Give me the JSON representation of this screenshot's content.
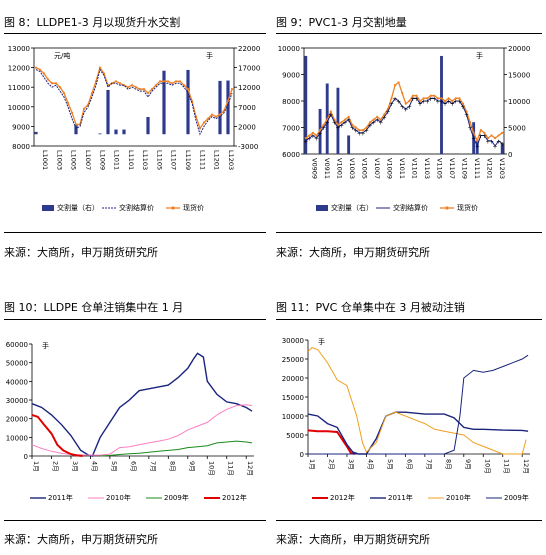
{
  "fig8": {
    "title": "图 8：LLDPE1-3 月以现货升水交割",
    "source": "来源：大商所，申万期货研究所",
    "chart_data": {
      "type": "bar+line",
      "left_unit": "元/吨",
      "right_unit": "手",
      "left_ylim": [
        8000,
        13000
      ],
      "left_ticks": [
        8000,
        9000,
        10000,
        11000,
        12000,
        13000
      ],
      "right_ylim": [
        -3000,
        22000
      ],
      "right_ticks": [
        -3000,
        2000,
        7000,
        12000,
        17000,
        22000
      ],
      "xticks": [
        "L1001",
        "L1003",
        "L1005",
        "L1007",
        "L1009",
        "L1011",
        "L1101",
        "L1103",
        "L1105",
        "L1107",
        "L1109",
        "L1111",
        "L1201",
        "L1203"
      ],
      "legend": [
        "交割量（右）",
        "交割结算价",
        "现货价"
      ],
      "bars": [
        600,
        0,
        0,
        0,
        0,
        0,
        0,
        0,
        0,
        0,
        2500,
        0,
        0,
        0,
        0,
        0,
        200,
        0,
        11300,
        0,
        1200,
        0,
        1200,
        0,
        0,
        0,
        0,
        0,
        4400,
        0,
        0,
        0,
        16200,
        0,
        0,
        0,
        0,
        0,
        16400,
        0,
        0,
        0,
        0,
        0,
        0,
        0,
        13600,
        0,
        13700,
        0
      ],
      "settle": [
        11900,
        11800,
        11500,
        11200,
        11000,
        11100,
        10800,
        10500,
        10000,
        9400,
        8900,
        9000,
        9700,
        10000,
        10500,
        11100,
        11900,
        11600,
        11000,
        11200,
        11200,
        11100,
        11100,
        10900,
        11000,
        10900,
        10800,
        10800,
        10500,
        10800,
        11000,
        11200,
        11200,
        11200,
        11100,
        11200,
        11200,
        11000,
        10700,
        10200,
        9300,
        8600,
        9000,
        9300,
        9500,
        9400,
        9500,
        9700,
        10100,
        10700
      ],
      "spot": [
        12000,
        11900,
        11700,
        11400,
        11200,
        11200,
        11000,
        10700,
        10200,
        9700,
        9100,
        9100,
        9900,
        10100,
        10700,
        11300,
        12000,
        11700,
        11100,
        11200,
        11300,
        11200,
        11100,
        11000,
        11100,
        11000,
        10900,
        10900,
        10700,
        10900,
        11100,
        11300,
        11300,
        11300,
        11200,
        11300,
        11300,
        11100,
        10900,
        10300,
        9500,
        8900,
        9200,
        9400,
        9600,
        9500,
        9600,
        9800,
        10300,
        10900
      ]
    }
  },
  "fig9": {
    "title": "图 9：PVC1-3 月交割地量",
    "source": "来源：大商所，申万期货研究所",
    "chart_data": {
      "type": "bar+line",
      "left_unit": "",
      "right_unit": "手",
      "left_ylim": [
        6000,
        10000
      ],
      "left_ticks": [
        6000,
        7000,
        8000,
        9000,
        10000
      ],
      "right_ylim": [
        0,
        20000
      ],
      "right_ticks": [
        0,
        5000,
        10000,
        15000,
        20000
      ],
      "xticks": [
        "V0909",
        "V0911",
        "V1001",
        "V1003",
        "V1005",
        "V1007",
        "V1009",
        "V1011",
        "V1101",
        "V1103",
        "V1105",
        "V1107",
        "V1109",
        "V1111",
        "V1201",
        "V1203"
      ],
      "legend": [
        "交割量（右）",
        "交割结算价",
        "现货价"
      ],
      "bars": [
        18500,
        0,
        0,
        0,
        8500,
        0,
        13300,
        0,
        0,
        12500,
        0,
        0,
        3500,
        0,
        0,
        0,
        0,
        0,
        0,
        0,
        0,
        0,
        0,
        0,
        0,
        0,
        0,
        0,
        0,
        0,
        0,
        0,
        0,
        0,
        0,
        0,
        0,
        0,
        18500,
        0,
        0,
        0,
        0,
        0,
        0,
        0,
        0,
        6000,
        2500,
        0,
        0,
        0,
        0,
        0,
        0,
        2000
      ],
      "settle": [
        6500,
        6600,
        6700,
        6600,
        6800,
        7000,
        7200,
        7500,
        7200,
        7000,
        7100,
        7200,
        7300,
        7000,
        6900,
        6800,
        6800,
        6900,
        7100,
        7200,
        7300,
        7200,
        7400,
        7600,
        7900,
        8100,
        8000,
        7800,
        7700,
        7800,
        8100,
        8100,
        7900,
        8000,
        8000,
        8100,
        8100,
        8000,
        8000,
        7900,
        8000,
        7900,
        8000,
        8000,
        7800,
        7500,
        7000,
        6600,
        6300,
        6700,
        6700,
        6500,
        6500,
        6300,
        6500,
        6400
      ],
      "spot": [
        6600,
        6700,
        6800,
        6700,
        6900,
        7100,
        7300,
        7600,
        7300,
        7100,
        7200,
        7300,
        7400,
        7100,
        7000,
        6900,
        6900,
        7000,
        7200,
        7300,
        7400,
        7300,
        7500,
        7700,
        8100,
        8600,
        8700,
        8300,
        7900,
        8000,
        8200,
        8200,
        8000,
        8100,
        8100,
        8200,
        8200,
        8100,
        8100,
        8000,
        8100,
        8000,
        8100,
        8100,
        7900,
        7600,
        7200,
        6800,
        6500,
        6900,
        6800,
        6600,
        6700,
        6600,
        6700,
        6800
      ]
    }
  },
  "fig10": {
    "title": "图 10：LLDPE 仓单注销集中在 1 月",
    "source": "来源：大商所，申万期货研究所",
    "chart_data": {
      "type": "line",
      "unit": "手",
      "ylim": [
        0,
        60000
      ],
      "yticks": [
        0,
        10000,
        20000,
        30000,
        40000,
        50000,
        60000
      ],
      "xticks": [
        "1月",
        "2月",
        "3月",
        "4月",
        "5月",
        "6月",
        "7月",
        "8月",
        "9月",
        "10月",
        "11月",
        "12月"
      ],
      "series": [
        {
          "name": "2011年",
          "color": "#1a237e",
          "points": [
            [
              1,
              28000
            ],
            [
              1.5,
              26000
            ],
            [
              2,
              22000
            ],
            [
              2.5,
              17000
            ],
            [
              3,
              11000
            ],
            [
              3.5,
              3000
            ],
            [
              3.9,
              500
            ],
            [
              4.1,
              0
            ],
            [
              4.5,
              10000
            ],
            [
              5,
              18000
            ],
            [
              5.5,
              26000
            ],
            [
              6,
              30000
            ],
            [
              6.5,
              35000
            ],
            [
              7,
              36000
            ],
            [
              7.5,
              37000
            ],
            [
              8,
              38000
            ],
            [
              8.5,
              42000
            ],
            [
              9,
              47000
            ],
            [
              9.3,
              52000
            ],
            [
              9.5,
              55000
            ],
            [
              9.8,
              53000
            ],
            [
              10,
              40000
            ],
            [
              10.5,
              33000
            ],
            [
              11,
              29000
            ],
            [
              11.5,
              28000
            ],
            [
              12,
              26000
            ],
            [
              12.3,
              24000
            ]
          ]
        },
        {
          "name": "2010年",
          "color": "#ff80c0",
          "points": [
            [
              1,
              6000
            ],
            [
              1.5,
              4000
            ],
            [
              2,
              2500
            ],
            [
              2.5,
              1500
            ],
            [
              3,
              800
            ],
            [
              3.5,
              600
            ],
            [
              4,
              500
            ],
            [
              4.5,
              500
            ],
            [
              5,
              1000
            ],
            [
              5.5,
              4500
            ],
            [
              6,
              5000
            ],
            [
              6.5,
              6000
            ],
            [
              7,
              7000
            ],
            [
              7.5,
              8000
            ],
            [
              8,
              9000
            ],
            [
              8.5,
              11000
            ],
            [
              9,
              14000
            ],
            [
              9.5,
              16000
            ],
            [
              10,
              18000
            ],
            [
              10.5,
              22000
            ],
            [
              11,
              25000
            ],
            [
              11.5,
              27000
            ],
            [
              12,
              27500
            ],
            [
              12.3,
              27000
            ]
          ]
        },
        {
          "name": "2009年",
          "color": "#1b8a1b",
          "points": [
            [
              4.5,
              0
            ],
            [
              5,
              300
            ],
            [
              5.5,
              800
            ],
            [
              6,
              1200
            ],
            [
              6.5,
              1500
            ],
            [
              7,
              2000
            ],
            [
              7.5,
              2500
            ],
            [
              8,
              3000
            ],
            [
              8.5,
              3500
            ],
            [
              9,
              4500
            ],
            [
              9.5,
              5000
            ],
            [
              10,
              5500
            ],
            [
              10.5,
              7000
            ],
            [
              11,
              7500
            ],
            [
              11.5,
              8000
            ],
            [
              12,
              7500
            ],
            [
              12.3,
              7000
            ]
          ]
        },
        {
          "name": "2012年",
          "color": "#e00000",
          "points": [
            [
              1,
              22000
            ],
            [
              1.3,
              21000
            ],
            [
              1.6,
              17000
            ],
            [
              2,
              12000
            ],
            [
              2.3,
              6000
            ],
            [
              2.6,
              3000
            ],
            [
              3,
              1000
            ],
            [
              3.3,
              300
            ],
            [
              3.6,
              0
            ]
          ]
        }
      ]
    }
  },
  "fig11": {
    "title": "图 11：PVC 仓单集中在 3 月被动注销",
    "source": "来源：大商所，申万期货研究所",
    "chart_data": {
      "type": "line",
      "unit": "手",
      "ylim": [
        0,
        30000
      ],
      "yticks": [
        0,
        5000,
        10000,
        15000,
        20000,
        25000,
        30000
      ],
      "xticks": [
        "1月",
        "2月",
        "3月",
        "4月",
        "5月",
        "6月",
        "7月",
        "8月",
        "9月",
        "10月",
        "11月",
        "12月"
      ],
      "series": [
        {
          "name": "2012年",
          "color": "#e00000",
          "points": [
            [
              1,
              6200
            ],
            [
              1.5,
              6000
            ],
            [
              2,
              6000
            ],
            [
              2.5,
              5800
            ],
            [
              3,
              2000
            ],
            [
              3.2,
              300
            ],
            [
              3.4,
              0
            ]
          ]
        },
        {
          "name": "2011年",
          "color": "#1a237e",
          "points": [
            [
              1,
              10500
            ],
            [
              1.5,
              10000
            ],
            [
              2,
              8000
            ],
            [
              2.5,
              7000
            ],
            [
              3,
              2500
            ],
            [
              3.3,
              500
            ],
            [
              3.6,
              0
            ],
            [
              4,
              0
            ],
            [
              4.5,
              4000
            ],
            [
              5,
              10000
            ],
            [
              5.5,
              11000
            ],
            [
              6,
              11000
            ],
            [
              7,
              10500
            ],
            [
              8,
              10500
            ],
            [
              8.5,
              9500
            ],
            [
              9,
              7000
            ],
            [
              9.5,
              6500
            ],
            [
              10,
              6500
            ],
            [
              11,
              6300
            ],
            [
              12,
              6200
            ],
            [
              12.3,
              6000
            ]
          ]
        },
        {
          "name": "2010年",
          "color": "#f0a020",
          "points": [
            [
              1,
              27000
            ],
            [
              1.2,
              28000
            ],
            [
              1.5,
              27500
            ],
            [
              2,
              24000
            ],
            [
              2.5,
              19500
            ],
            [
              3,
              18000
            ],
            [
              3.5,
              10000
            ],
            [
              3.8,
              3000
            ],
            [
              4,
              500
            ],
            [
              4.5,
              3000
            ],
            [
              5,
              10000
            ],
            [
              5.5,
              11000
            ],
            [
              6,
              10000
            ],
            [
              6.5,
              9000
            ],
            [
              7,
              8000
            ],
            [
              7.5,
              6500
            ],
            [
              8,
              6000
            ],
            [
              8.5,
              5500
            ],
            [
              9,
              5000
            ],
            [
              9.5,
              3000
            ],
            [
              10,
              2000
            ],
            [
              11,
              0
            ],
            [
              12,
              0
            ],
            [
              12.2,
              3800
            ]
          ]
        },
        {
          "name": "2009年",
          "color": "#1a237e",
          "points": [
            [
              1,
              0
            ],
            [
              8,
              0
            ],
            [
              8.5,
              1000
            ],
            [
              8.8,
              10000
            ],
            [
              9,
              20000
            ],
            [
              9.5,
              22000
            ],
            [
              10,
              21500
            ],
            [
              10.5,
              22000
            ],
            [
              11,
              23000
            ],
            [
              11.5,
              24000
            ],
            [
              12,
              25000
            ],
            [
              12.3,
              26000
            ]
          ]
        }
      ]
    }
  }
}
